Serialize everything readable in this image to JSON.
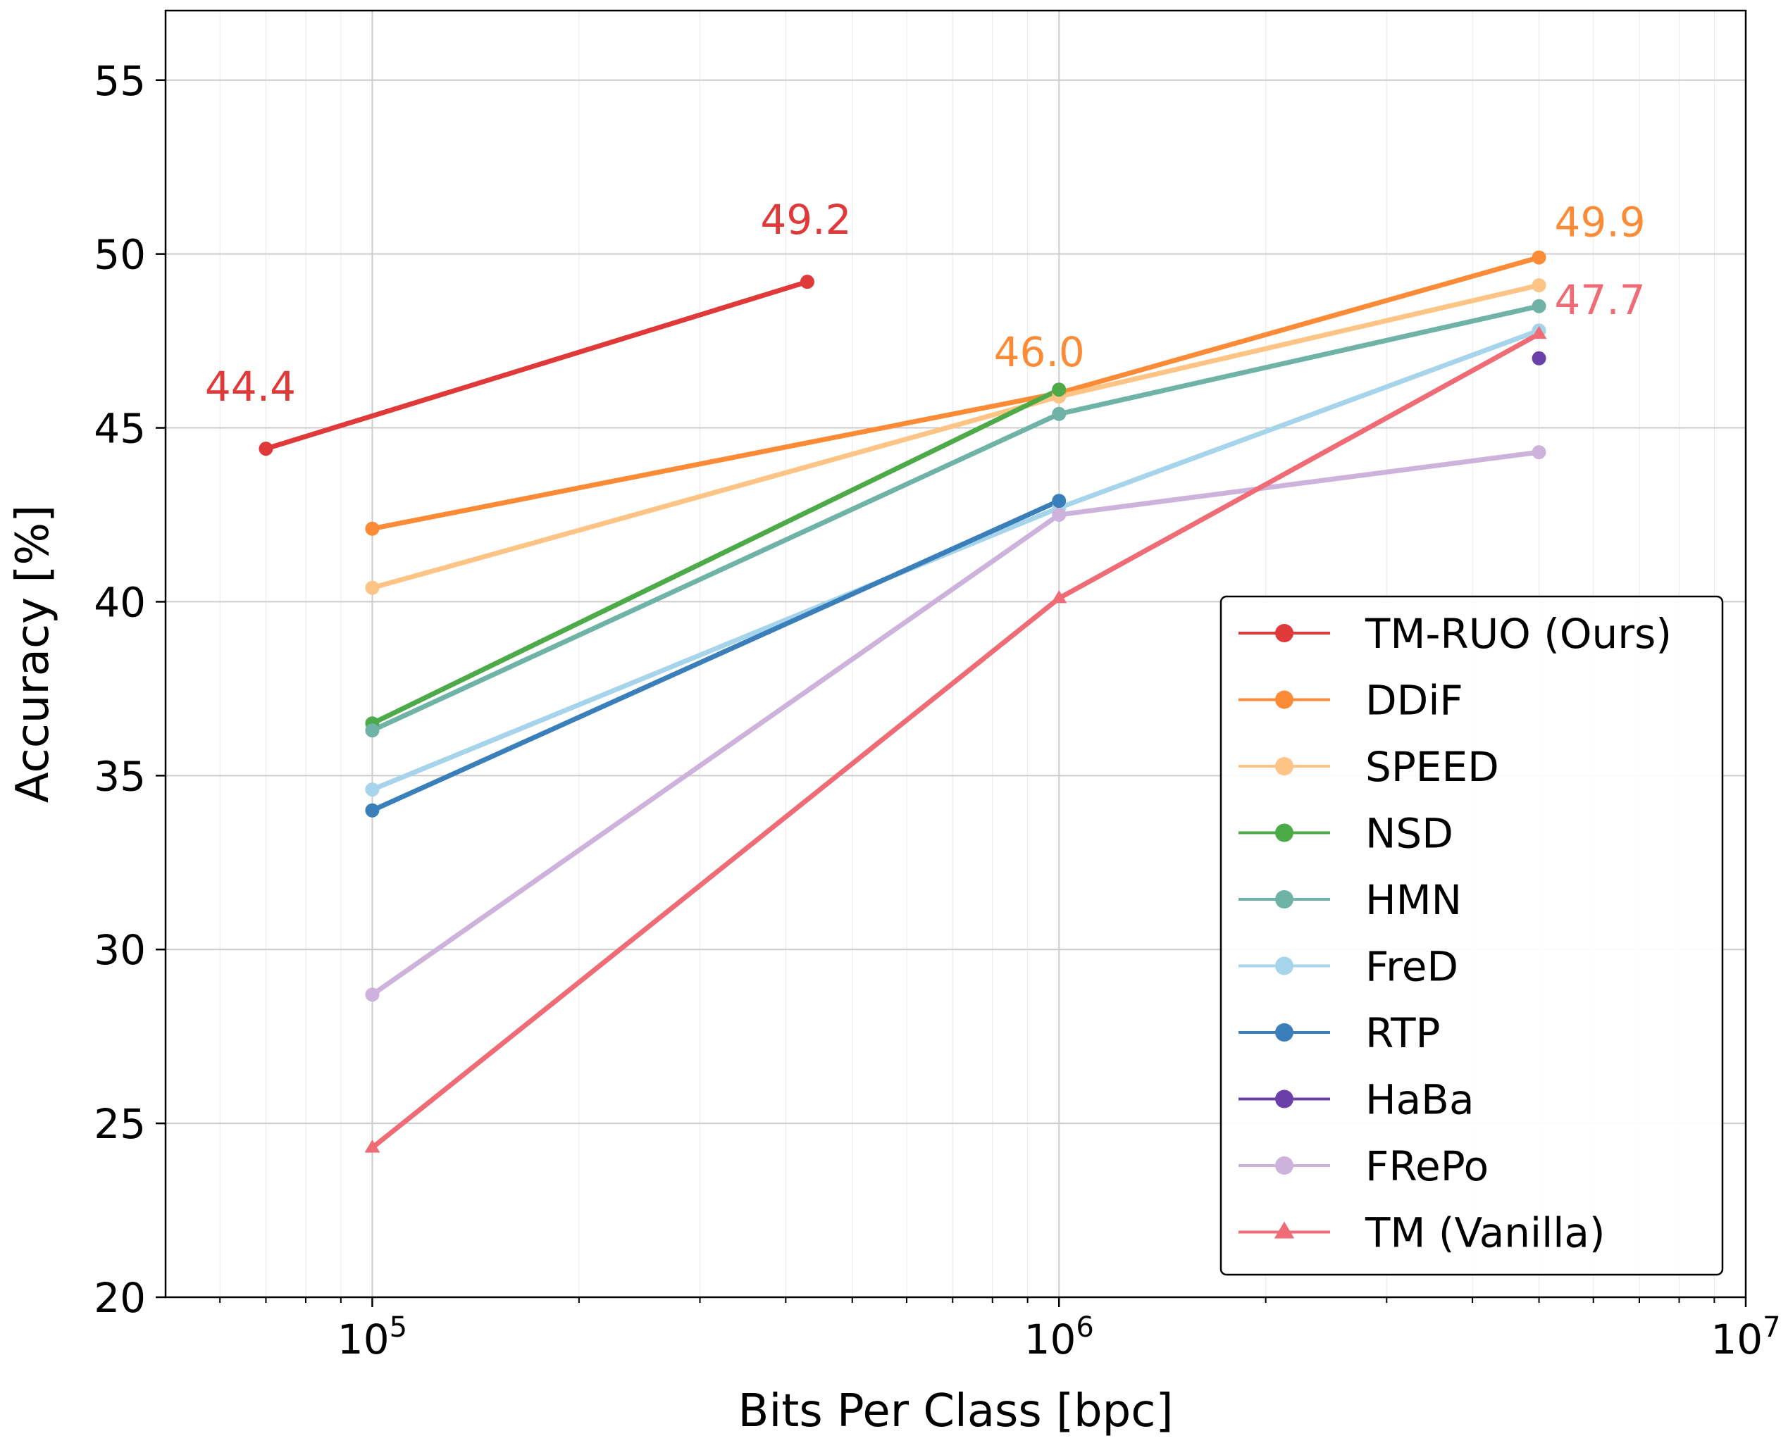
{
  "chart_data": {
    "type": "line",
    "title": "",
    "xlabel": "Bits Per Class [bpc]",
    "ylabel": "Accuracy [%]",
    "xscale": "log",
    "xlim": [
      50000,
      10000000
    ],
    "ylim": [
      20,
      57
    ],
    "grid": true,
    "legend_position": "lower-right",
    "x_ticks": [
      {
        "value": 100000,
        "base": "10",
        "exp": "5"
      },
      {
        "value": 1000000,
        "base": "10",
        "exp": "6"
      },
      {
        "value": 10000000,
        "base": "10",
        "exp": "7"
      }
    ],
    "y_ticks": [
      {
        "value": 20,
        "label": "20"
      },
      {
        "value": 25,
        "label": "25"
      },
      {
        "value": 30,
        "label": "30"
      },
      {
        "value": 35,
        "label": "35"
      },
      {
        "value": 40,
        "label": "40"
      },
      {
        "value": 45,
        "label": "45"
      },
      {
        "value": 50,
        "label": "50"
      },
      {
        "value": 55,
        "label": "55"
      }
    ],
    "series": [
      {
        "name": "TM-RUO (Ours)",
        "color": "#e0393a",
        "marker": "circle",
        "points": [
          [
            70000,
            44.4
          ],
          [
            430000,
            49.2
          ]
        ]
      },
      {
        "name": "DDiF",
        "color": "#fb8b36",
        "marker": "circle",
        "points": [
          [
            100000,
            42.1
          ],
          [
            1000000,
            46.0
          ],
          [
            5000000,
            49.9
          ]
        ]
      },
      {
        "name": "SPEED",
        "color": "#fdc486",
        "marker": "circle",
        "points": [
          [
            100000,
            40.4
          ],
          [
            1000000,
            45.9
          ],
          [
            5000000,
            49.1
          ]
        ]
      },
      {
        "name": "NSD",
        "color": "#4daa48",
        "marker": "circle",
        "points": [
          [
            100000,
            36.5
          ],
          [
            1000000,
            46.1
          ]
        ]
      },
      {
        "name": "HMN",
        "color": "#6fb3a7",
        "marker": "circle",
        "points": [
          [
            100000,
            36.3
          ],
          [
            1000000,
            45.4
          ],
          [
            5000000,
            48.5
          ]
        ]
      },
      {
        "name": "FreD",
        "color": "#a6d4ea",
        "marker": "circle",
        "points": [
          [
            100000,
            34.6
          ],
          [
            1000000,
            42.7
          ],
          [
            5000000,
            47.8
          ]
        ]
      },
      {
        "name": "RTP",
        "color": "#3a7fba",
        "marker": "circle",
        "points": [
          [
            100000,
            34.0
          ],
          [
            1000000,
            42.9
          ]
        ]
      },
      {
        "name": "HaBa",
        "color": "#6a40a8",
        "marker": "circle",
        "points": [
          [
            5000000,
            47.0
          ]
        ]
      },
      {
        "name": "FRePo",
        "color": "#cdb3dc",
        "marker": "circle",
        "points": [
          [
            100000,
            28.7
          ],
          [
            1000000,
            42.5
          ],
          [
            5000000,
            44.3
          ]
        ]
      },
      {
        "name": "TM (Vanilla)",
        "color": "#ef6b75",
        "marker": "triangle",
        "points": [
          [
            100000,
            24.3
          ],
          [
            1000000,
            40.1
          ],
          [
            5000000,
            47.7
          ]
        ]
      }
    ],
    "annotations": [
      {
        "text": "44.4",
        "x": 70000,
        "y": 44.4,
        "color": "#e0393a"
      },
      {
        "text": "49.2",
        "x": 430000,
        "y": 49.2,
        "color": "#e0393a"
      },
      {
        "text": "46.0",
        "x": 1000000,
        "y": 46.0,
        "color": "#fb8b36"
      },
      {
        "text": "49.9",
        "x": 5000000,
        "y": 49.9,
        "color": "#fb8b36"
      },
      {
        "text": "47.7",
        "x": 5000000,
        "y": 47.7,
        "color": "#ef6b75"
      }
    ]
  }
}
